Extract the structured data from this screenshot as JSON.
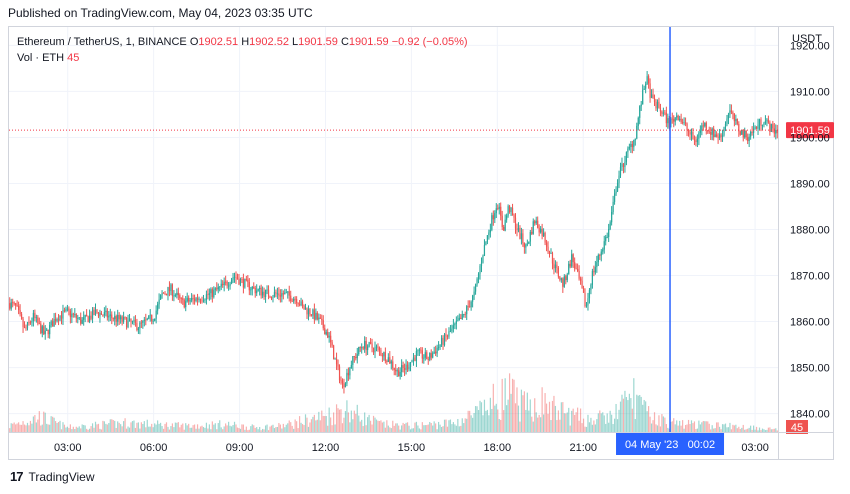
{
  "header": {
    "published": "Published on TradingView.com, May 04, 2023 03:35 UTC"
  },
  "legend": {
    "symbol": "Ethereum / TetherUS, 1, BINANCE",
    "o_label": "O",
    "o_value": "1902.51",
    "h_label": "H",
    "h_value": "1902.52",
    "l_label": "L",
    "l_value": "1901.59",
    "c_label": "C",
    "c_value": "1901.59",
    "change": "−0.92 (−0.05%)",
    "vol_label": "Vol · ETH",
    "vol_value": "45"
  },
  "footer": {
    "brand": "TradingView",
    "logo_text": "17"
  },
  "chart_data": {
    "type": "candlestick",
    "currency_label": "USDT",
    "ylim": [
      1836,
      1924
    ],
    "yticks": [
      1840,
      1850,
      1860,
      1870,
      1880,
      1890,
      1900,
      1910,
      1920
    ],
    "ytick_labels": [
      "1840.00",
      "1850.00",
      "1860.00",
      "1870.00",
      "1880.00",
      "1890.00",
      "1900.00",
      "1910.00",
      "1920.00"
    ],
    "x_tick_labels": [
      "03:00",
      "06:00",
      "09:00",
      "12:00",
      "15:00",
      "18:00",
      "21:00",
      "03:00"
    ],
    "x_tick_hours": [
      3,
      6,
      9,
      12,
      15,
      18,
      21,
      27
    ],
    "x_range_hours": [
      0.95,
      27.8
    ],
    "last_price": 1901.59,
    "last_price_label": "1901.59",
    "last_volume": 45,
    "last_volume_label": "45",
    "crosshair_hour": 24.03,
    "crosshair_label": "04 May '23   00:02",
    "up_color": "#26a69a",
    "down_color": "#ef5350",
    "price_path": [
      [
        0.95,
        1864
      ],
      [
        1.2,
        1863
      ],
      [
        1.5,
        1858
      ],
      [
        1.8,
        1861
      ],
      [
        2.2,
        1857
      ],
      [
        2.6,
        1861
      ],
      [
        3.0,
        1862
      ],
      [
        3.5,
        1860
      ],
      [
        4.0,
        1862
      ],
      [
        4.5,
        1861
      ],
      [
        5.0,
        1860
      ],
      [
        5.5,
        1859
      ],
      [
        6.0,
        1861
      ],
      [
        6.3,
        1866
      ],
      [
        6.6,
        1867
      ],
      [
        7.0,
        1864
      ],
      [
        7.5,
        1865
      ],
      [
        8.0,
        1866
      ],
      [
        8.5,
        1868
      ],
      [
        8.8,
        1870
      ],
      [
        9.0,
        1869
      ],
      [
        9.5,
        1867
      ],
      [
        10.0,
        1866
      ],
      [
        10.5,
        1866
      ],
      [
        11.0,
        1865
      ],
      [
        11.2,
        1863
      ],
      [
        11.5,
        1862
      ],
      [
        11.8,
        1860
      ],
      [
        12.1,
        1857
      ],
      [
        12.4,
        1850
      ],
      [
        12.6,
        1846
      ],
      [
        12.9,
        1851
      ],
      [
        13.3,
        1855
      ],
      [
        13.8,
        1854
      ],
      [
        14.2,
        1852
      ],
      [
        14.5,
        1849
      ],
      [
        14.8,
        1850
      ],
      [
        15.2,
        1853
      ],
      [
        15.6,
        1852
      ],
      [
        16.0,
        1855
      ],
      [
        16.4,
        1858
      ],
      [
        16.8,
        1861
      ],
      [
        17.2,
        1866
      ],
      [
        17.5,
        1875
      ],
      [
        17.8,
        1882
      ],
      [
        18.0,
        1886
      ],
      [
        18.2,
        1880
      ],
      [
        18.4,
        1885
      ],
      [
        18.7,
        1880
      ],
      [
        19.0,
        1876
      ],
      [
        19.3,
        1882
      ],
      [
        19.6,
        1879
      ],
      [
        20.0,
        1872
      ],
      [
        20.3,
        1868
      ],
      [
        20.6,
        1874
      ],
      [
        20.9,
        1868
      ],
      [
        21.1,
        1863
      ],
      [
        21.3,
        1870
      ],
      [
        21.6,
        1875
      ],
      [
        21.9,
        1880
      ],
      [
        22.2,
        1891
      ],
      [
        22.5,
        1896
      ],
      [
        22.8,
        1900
      ],
      [
        23.0,
        1907
      ],
      [
        23.2,
        1913
      ],
      [
        23.4,
        1908
      ],
      [
        23.7,
        1906
      ],
      [
        24.0,
        1903
      ],
      [
        24.3,
        1905
      ],
      [
        24.6,
        1902
      ],
      [
        24.9,
        1899
      ],
      [
        25.2,
        1903
      ],
      [
        25.5,
        1901
      ],
      [
        25.8,
        1900
      ],
      [
        26.1,
        1906
      ],
      [
        26.4,
        1902
      ],
      [
        26.7,
        1900
      ],
      [
        27.0,
        1902
      ],
      [
        27.3,
        1904
      ],
      [
        27.6,
        1901.59
      ]
    ],
    "volume_profile": [
      [
        0.95,
        4
      ],
      [
        2.0,
        10
      ],
      [
        3.0,
        3
      ],
      [
        5.0,
        6
      ],
      [
        7.0,
        4
      ],
      [
        8.5,
        5
      ],
      [
        9.5,
        3
      ],
      [
        10.5,
        4
      ],
      [
        12.3,
        12
      ],
      [
        12.6,
        16
      ],
      [
        13.5,
        8
      ],
      [
        14.0,
        5
      ],
      [
        15.0,
        4
      ],
      [
        16.5,
        6
      ],
      [
        17.5,
        14
      ],
      [
        18.0,
        22
      ],
      [
        18.4,
        25
      ],
      [
        19.0,
        16
      ],
      [
        19.5,
        20
      ],
      [
        20.0,
        15
      ],
      [
        20.5,
        12
      ],
      [
        21.2,
        8
      ],
      [
        22.0,
        10
      ],
      [
        22.8,
        25
      ],
      [
        23.2,
        12
      ],
      [
        24.0,
        6
      ],
      [
        25.0,
        5
      ],
      [
        26.0,
        4
      ],
      [
        27.0,
        3
      ],
      [
        27.6,
        2
      ]
    ],
    "volume_max": 40
  }
}
